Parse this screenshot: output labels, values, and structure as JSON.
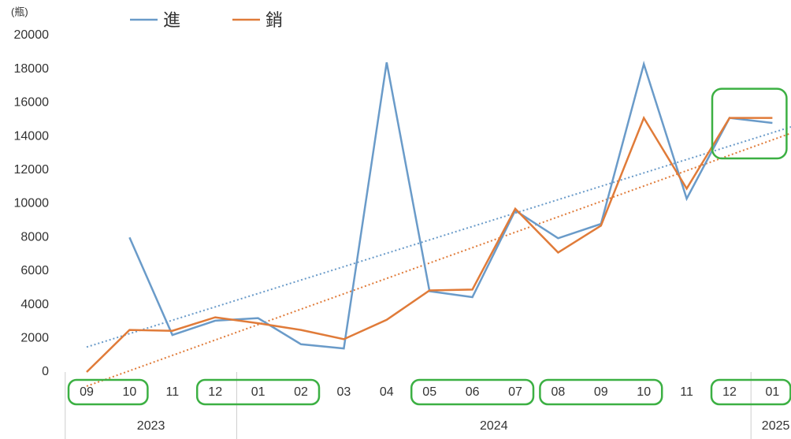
{
  "chart_data": {
    "type": "line",
    "y_label": "(瓶)",
    "categories": [
      "09",
      "10",
      "11",
      "12",
      "01",
      "02",
      "03",
      "04",
      "05",
      "06",
      "07",
      "08",
      "09",
      "10",
      "11",
      "12",
      "01"
    ],
    "x_groups": [
      {
        "label": "2023",
        "count": 4
      },
      {
        "label": "2024",
        "count": 12
      },
      {
        "label": "2025",
        "count": 1
      }
    ],
    "series": [
      {
        "name": "進",
        "color": "#6a9bc9",
        "values": [
          null,
          8000,
          2200,
          3050,
          3200,
          1650,
          1400,
          18400,
          4800,
          4450,
          9600,
          7950,
          8800,
          18300,
          10300,
          15100,
          14800
        ]
      },
      {
        "name": "銷",
        "color": "#e07b39",
        "values": [
          0,
          2500,
          2450,
          3250,
          2900,
          2500,
          1950,
          3100,
          4850,
          4900,
          9700,
          7100,
          8700,
          15100,
          10900,
          15100,
          15100
        ]
      }
    ],
    "ylim": [
      0,
      20000
    ],
    "yticks": [
      0,
      2000,
      4000,
      6000,
      8000,
      10000,
      12000,
      14000,
      16000,
      18000,
      20000
    ],
    "grid": false,
    "trendline": true,
    "legend": "top",
    "highlight_color": "#3cb043",
    "highlight_categories": [
      [
        0,
        1
      ],
      [
        3,
        5
      ],
      [
        8,
        10
      ],
      [
        11,
        13
      ],
      [
        15,
        16
      ]
    ],
    "highlight_points": [
      15,
      16
    ]
  }
}
